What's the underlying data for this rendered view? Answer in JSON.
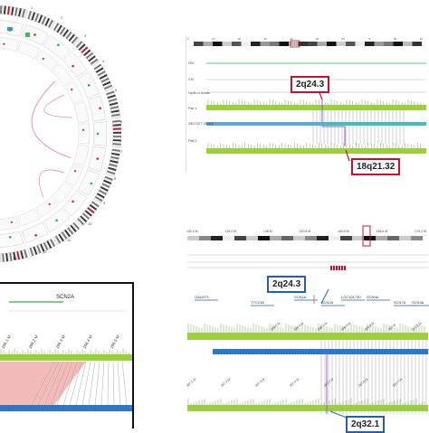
{
  "circos": {
    "chromosome_labels": [
      "1",
      "2",
      "3",
      "4",
      "5",
      "6",
      "7",
      "8",
      "9",
      "10",
      "11",
      "12",
      "13"
    ],
    "colors": {
      "ideogram_dark": "#111111",
      "ideogram_red": "#c8102e",
      "link": "#e58fc4",
      "snv_red": "#d9262e",
      "snv_green": "#2bb24c"
    }
  },
  "panel_top_right": {
    "ruler_labels": [
      "0",
      "10",
      "20",
      "30",
      "40",
      "50",
      "60",
      "70",
      "80",
      "90"
    ],
    "track_labels": [
      "GN",
      "CN",
      "Split-rd reads",
      "Pat 1",
      "SECS27 29463",
      "Pat 2"
    ],
    "callouts": {
      "upper": "2q24.3",
      "lower": "18q21.32"
    }
  },
  "panel_mid_right": {
    "ruler_labels": [
      "132.4 M",
      "115.2 M",
      "128 M",
      "140.8 M",
      "153.6 M",
      "166.4 M",
      "179.2 M"
    ],
    "callout": "2q24.3",
    "genes": [
      "GALNT3",
      "TTC21B",
      "SCN1A",
      "SCN2A",
      "SCN9A",
      "SCN7A",
      "LOC101730",
      "SCN3A"
    ],
    "mb_ticks": [
      "166.5 M",
      "166.6 M",
      "166.7 M",
      "166.8 M",
      "166.9 M",
      "167 M",
      "167.1 M"
    ],
    "lower_ticks": [
      "167.1 M",
      "167.2 M",
      "167.3 M",
      "167.4 M",
      "167.5 M",
      "167.6 M",
      "167.7 M"
    ],
    "callout_bottom": "2q32.1"
  },
  "panel_bottom_left": {
    "gene": "SCN2A",
    "ticks": [
      "166.1 M",
      "166.2 M",
      "166.3 M",
      "166.4 M",
      "166.5 M"
    ]
  }
}
